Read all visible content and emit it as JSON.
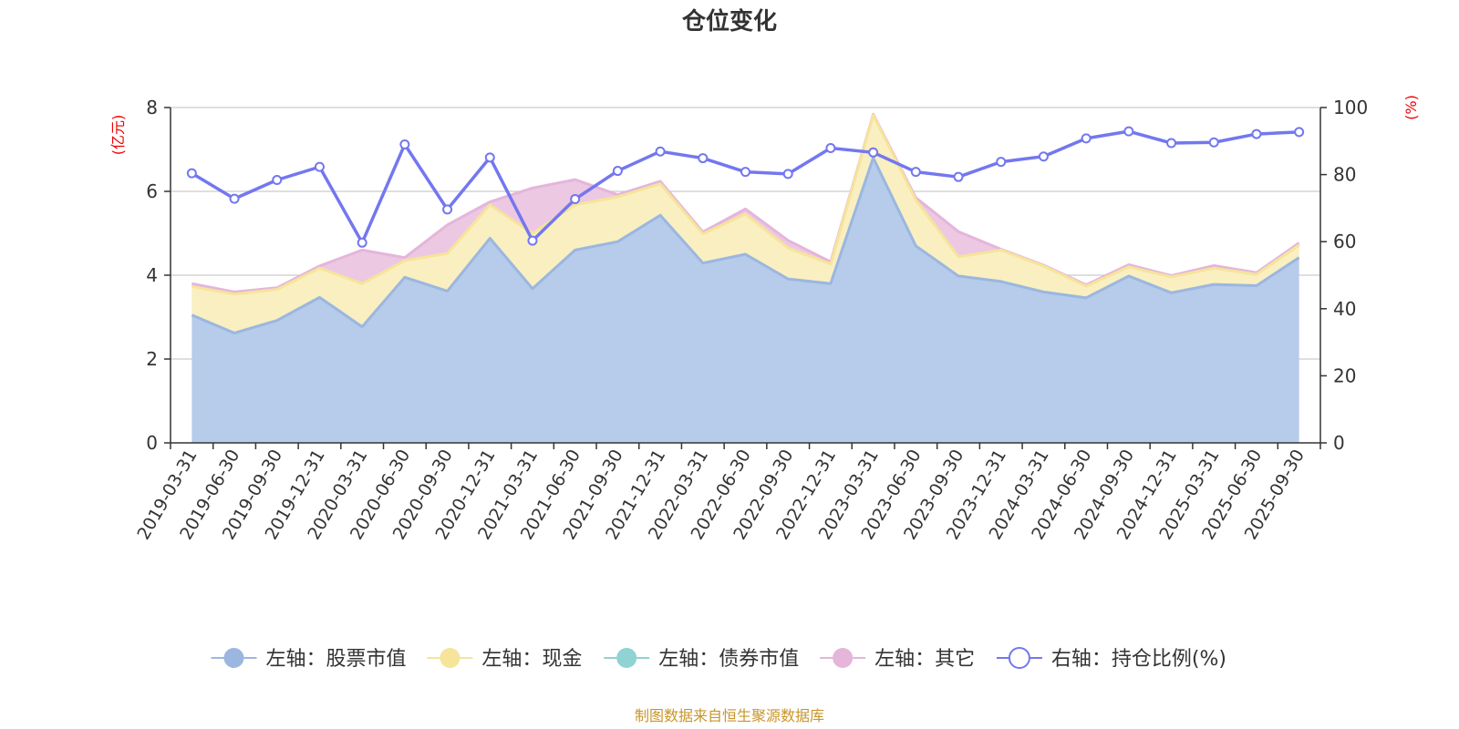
{
  "chart_data": {
    "type": "area",
    "title": "仓位变化",
    "left_axis_unit": "(亿元)",
    "right_axis_unit": "(%)",
    "ylim_left": [
      0,
      8
    ],
    "ylim_right": [
      0,
      100
    ],
    "yticks_left": [
      "0",
      "2",
      "4",
      "6",
      "8"
    ],
    "yticks_right": [
      "0",
      "20",
      "40",
      "60",
      "80",
      "100"
    ],
    "categories": [
      "2019-03-31",
      "2019-06-30",
      "2019-09-30",
      "2019-12-31",
      "2020-03-31",
      "2020-06-30",
      "2020-09-30",
      "2020-12-31",
      "2021-03-31",
      "2021-06-30",
      "2021-09-30",
      "2021-12-31",
      "2022-03-31",
      "2022-06-30",
      "2022-09-30",
      "2022-12-31",
      "2023-03-31",
      "2023-06-30",
      "2023-09-30",
      "2023-12-31",
      "2024-03-31",
      "2024-06-30",
      "2024-09-30",
      "2024-12-31",
      "2025-03-31",
      "2025-06-30",
      "2025-09-30"
    ],
    "series": [
      {
        "name": "左轴：股票市值",
        "axis": "left",
        "kind": "stacked-area",
        "color": "#9bb7e0",
        "fill": "#b7cbea",
        "values": [
          3.05,
          2.62,
          2.92,
          3.47,
          2.77,
          3.95,
          3.62,
          4.88,
          3.68,
          4.6,
          4.8,
          5.43,
          4.29,
          4.5,
          3.91,
          3.8,
          6.8,
          4.7,
          3.98,
          3.85,
          3.6,
          3.46,
          3.98,
          3.58,
          3.78,
          3.75,
          4.42
        ]
      },
      {
        "name": "左轴：现金",
        "axis": "left",
        "kind": "stacked-area",
        "color": "#f5e49a",
        "fill": "#f9efc0",
        "values": [
          0.68,
          0.93,
          0.74,
          0.7,
          1.03,
          0.4,
          0.9,
          0.8,
          1.32,
          1.08,
          1.07,
          0.75,
          0.7,
          0.96,
          0.74,
          0.47,
          1.02,
          1.1,
          0.46,
          0.75,
          0.62,
          0.28,
          0.22,
          0.38,
          0.39,
          0.27,
          0.3
        ]
      },
      {
        "name": "左轴：债券市值",
        "axis": "left",
        "kind": "stacked-area",
        "color": "#8fd3d3",
        "fill": "#bfe6e6",
        "values": [
          0,
          0,
          0,
          0,
          0,
          0,
          0,
          0,
          0,
          0,
          0,
          0,
          0,
          0,
          0,
          0,
          0,
          0,
          0,
          0,
          0,
          0,
          0,
          0,
          0,
          0,
          0
        ]
      },
      {
        "name": "左轴：其它",
        "axis": "left",
        "kind": "stacked-area",
        "color": "#e5b5da",
        "fill": "#ecc8e3",
        "values": [
          0.07,
          0.05,
          0.04,
          0.05,
          0.8,
          0.07,
          0.68,
          0.07,
          1.08,
          0.6,
          0.05,
          0.06,
          0.04,
          0.12,
          0.18,
          0.05,
          0.02,
          0.05,
          0.6,
          0.02,
          0.02,
          0.03,
          0.05,
          0.03,
          0.06,
          0.04,
          0.05
        ]
      },
      {
        "name": "右轴：持仓比例(%)",
        "axis": "right",
        "kind": "line",
        "color": "#7377ef",
        "values": [
          80.4,
          72.8,
          78.4,
          82.3,
          59.7,
          89.0,
          69.6,
          85.1,
          60.3,
          72.7,
          81.1,
          86.9,
          84.9,
          80.8,
          80.2,
          87.9,
          86.6,
          80.8,
          79.3,
          83.8,
          85.4,
          90.8,
          92.9,
          89.4,
          89.6,
          92.1,
          92.7
        ]
      }
    ],
    "legend_position": "bottom",
    "grid": true,
    "source_note": "制图数据来自恒生聚源数据库"
  }
}
